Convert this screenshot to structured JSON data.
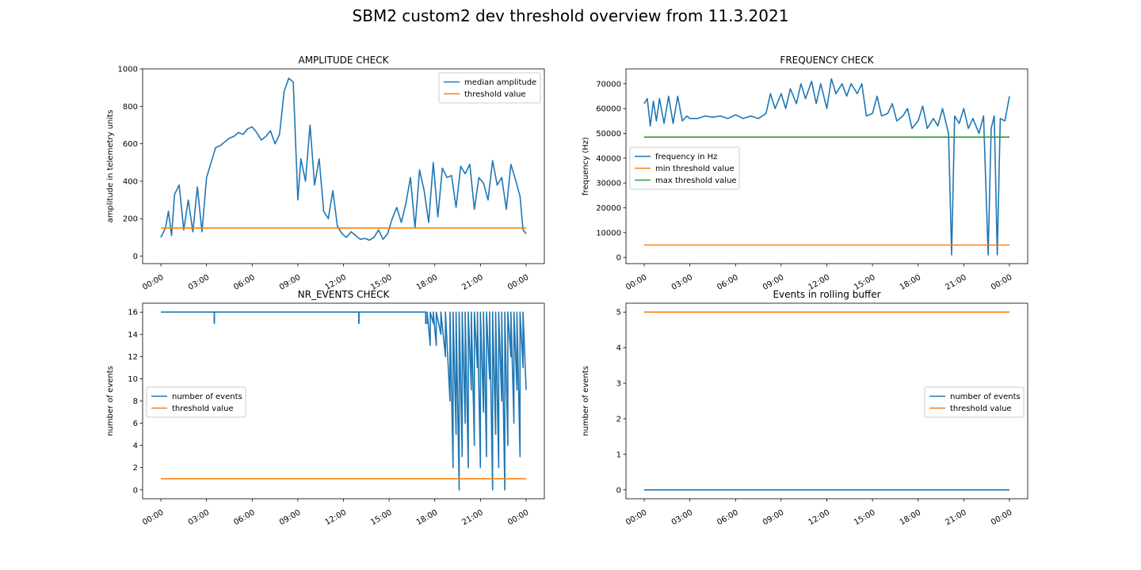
{
  "figure": {
    "title": "SBM2 custom2 dev threshold overview from 11.3.2021"
  },
  "chart_data": [
    {
      "id": "amplitude",
      "type": "line",
      "title": "AMPLITUDE CHECK",
      "xlabel": "",
      "ylabel": "amplitude in telemetry units",
      "xticks": [
        "00:00",
        "03:00",
        "06:00",
        "09:00",
        "12:00",
        "15:00",
        "18:00",
        "21:00",
        "00:00"
      ],
      "xlim_hours": [
        -1.2,
        25.2
      ],
      "ylim": [
        -40,
        1000
      ],
      "yticks": [
        0,
        200,
        400,
        600,
        800,
        1000
      ],
      "legend": "top-right",
      "series": [
        {
          "name": "median amplitude",
          "color": "#1f77b4",
          "x_hours": [
            0,
            0.3,
            0.5,
            0.7,
            0.9,
            1.2,
            1.5,
            1.8,
            2.1,
            2.4,
            2.7,
            3.0,
            3.3,
            3.6,
            3.9,
            4.2,
            4.5,
            4.8,
            5.1,
            5.4,
            5.7,
            6.0,
            6.3,
            6.6,
            6.9,
            7.2,
            7.5,
            7.8,
            8.1,
            8.4,
            8.7,
            9.0,
            9.2,
            9.5,
            9.8,
            10.1,
            10.4,
            10.7,
            11.0,
            11.3,
            11.6,
            11.9,
            12.2,
            12.5,
            12.8,
            13.1,
            13.4,
            13.7,
            14.0,
            14.3,
            14.6,
            14.9,
            15.2,
            15.5,
            15.8,
            16.1,
            16.4,
            16.7,
            17.0,
            17.3,
            17.6,
            17.9,
            18.2,
            18.5,
            18.8,
            19.1,
            19.4,
            19.7,
            20.0,
            20.3,
            20.6,
            20.9,
            21.2,
            21.5,
            21.8,
            22.1,
            22.4,
            22.7,
            23.0,
            23.3,
            23.6,
            23.8,
            24.0
          ],
          "y": [
            100,
            150,
            240,
            110,
            330,
            380,
            140,
            300,
            130,
            370,
            130,
            420,
            500,
            580,
            590,
            610,
            630,
            640,
            660,
            650,
            680,
            690,
            660,
            620,
            640,
            670,
            600,
            650,
            880,
            950,
            930,
            300,
            520,
            400,
            700,
            380,
            520,
            240,
            200,
            350,
            160,
            120,
            100,
            130,
            110,
            90,
            95,
            85,
            100,
            140,
            90,
            120,
            200,
            260,
            180,
            280,
            420,
            150,
            460,
            350,
            180,
            500,
            210,
            470,
            420,
            430,
            260,
            480,
            440,
            490,
            250,
            420,
            390,
            300,
            510,
            380,
            420,
            250,
            490,
            410,
            320,
            140,
            120
          ]
        },
        {
          "name": "threshold value",
          "color": "#ff7f0e",
          "x_hours": [
            0,
            24
          ],
          "y": [
            150,
            150
          ]
        }
      ]
    },
    {
      "id": "frequency",
      "type": "line",
      "title": "FREQUENCY CHECK",
      "xlabel": "",
      "ylabel": "frequency (Hz)",
      "xticks": [
        "00:00",
        "03:00",
        "06:00",
        "09:00",
        "12:00",
        "15:00",
        "18:00",
        "21:00",
        "00:00"
      ],
      "xlim_hours": [
        -1.2,
        25.2
      ],
      "ylim": [
        -2500,
        76000
      ],
      "yticks": [
        0,
        10000,
        20000,
        30000,
        40000,
        50000,
        60000,
        70000
      ],
      "legend": "center-left",
      "series": [
        {
          "name": "frequency in Hz",
          "color": "#1f77b4",
          "x_hours": [
            0,
            0.2,
            0.4,
            0.6,
            0.8,
            1.0,
            1.3,
            1.6,
            1.9,
            2.2,
            2.5,
            2.8,
            3.0,
            3.5,
            4.0,
            4.5,
            5.0,
            5.5,
            6.0,
            6.5,
            7.0,
            7.5,
            8.0,
            8.3,
            8.6,
            9.0,
            9.3,
            9.6,
            10.0,
            10.3,
            10.6,
            11.0,
            11.3,
            11.6,
            12.0,
            12.3,
            12.6,
            13.0,
            13.3,
            13.6,
            14.0,
            14.3,
            14.6,
            15.0,
            15.3,
            15.6,
            16.0,
            16.3,
            16.6,
            17.0,
            17.3,
            17.6,
            18.0,
            18.3,
            18.6,
            19.0,
            19.3,
            19.6,
            20.0,
            20.2,
            20.4,
            20.7,
            21.0,
            21.3,
            21.6,
            22.0,
            22.3,
            22.6,
            22.8,
            23.0,
            23.2,
            23.4,
            23.7,
            24.0
          ],
          "y": [
            62000,
            64000,
            53000,
            63000,
            55000,
            64000,
            54000,
            65000,
            54000,
            65000,
            55000,
            57000,
            56000,
            56000,
            57000,
            56500,
            57000,
            56000,
            57500,
            56000,
            57000,
            56000,
            58000,
            66000,
            60000,
            66000,
            60000,
            68000,
            62000,
            70000,
            64000,
            71000,
            62000,
            70000,
            60000,
            72000,
            66000,
            70000,
            65000,
            70000,
            66000,
            70000,
            57000,
            58000,
            65000,
            57000,
            58000,
            62000,
            55000,
            57000,
            60000,
            52000,
            55000,
            61000,
            52000,
            56000,
            53000,
            60000,
            50000,
            1000,
            57000,
            54000,
            60000,
            52000,
            56000,
            50000,
            57000,
            1000,
            52000,
            57000,
            1000,
            56000,
            55000,
            65000
          ]
        },
        {
          "name": "min threshold value",
          "color": "#ff7f0e",
          "x_hours": [
            0,
            24
          ],
          "y": [
            5000,
            5000
          ]
        },
        {
          "name": "max threshold value",
          "color": "#2ca02c",
          "x_hours": [
            0,
            24
          ],
          "y": [
            48500,
            48500
          ]
        }
      ]
    },
    {
      "id": "nr_events",
      "type": "line",
      "title": "NR_EVENTS CHECK",
      "xlabel": "",
      "ylabel": "number of events",
      "xticks": [
        "00:00",
        "03:00",
        "06:00",
        "09:00",
        "12:00",
        "15:00",
        "18:00",
        "21:00",
        "00:00"
      ],
      "xlim_hours": [
        -1.2,
        25.2
      ],
      "ylim": [
        -0.8,
        16.8
      ],
      "yticks": [
        0,
        2,
        4,
        6,
        8,
        10,
        12,
        14,
        16
      ],
      "legend": "center-left",
      "series": [
        {
          "name": "number of events",
          "color": "#1f77b4",
          "x_hours": [
            0,
            3.5,
            3.5,
            3.52,
            3.52,
            13.0,
            13.0,
            13.02,
            13.02,
            17.4,
            17.4,
            17.5,
            17.5,
            17.7,
            17.7,
            17.9,
            17.9,
            18.1,
            18.1,
            18.4,
            18.4,
            18.7,
            18.7,
            19.0,
            19.0,
            19.2,
            19.2,
            19.4,
            19.4,
            19.6,
            19.6,
            19.8,
            19.8,
            20.0,
            20.0,
            20.2,
            20.2,
            20.4,
            20.4,
            20.6,
            20.6,
            20.8,
            20.8,
            21.0,
            21.0,
            21.2,
            21.2,
            21.4,
            21.4,
            21.6,
            21.6,
            21.8,
            21.8,
            22.0,
            22.0,
            22.2,
            22.2,
            22.4,
            22.4,
            22.6,
            22.6,
            22.8,
            22.8,
            23.0,
            23.0,
            23.2,
            23.2,
            23.4,
            23.4,
            23.6,
            23.6,
            23.8,
            23.8,
            24.0
          ],
          "y": [
            16,
            16,
            15,
            15,
            16,
            16,
            15,
            15,
            16,
            16,
            15,
            15,
            16,
            13,
            16,
            15,
            16,
            13,
            16,
            14,
            16,
            12,
            16,
            8,
            16,
            2,
            16,
            5,
            16,
            0,
            16,
            3,
            16,
            6,
            16,
            2,
            16,
            9,
            16,
            4,
            16,
            11,
            16,
            2,
            16,
            7,
            16,
            3,
            16,
            10,
            16,
            0,
            16,
            5,
            16,
            2,
            16,
            8,
            16,
            0,
            16,
            4,
            16,
            12,
            16,
            6,
            16,
            9,
            16,
            3,
            16,
            11,
            16,
            9
          ]
        },
        {
          "name": "threshold value",
          "color": "#ff7f0e",
          "x_hours": [
            0,
            24
          ],
          "y": [
            1,
            1
          ]
        }
      ]
    },
    {
      "id": "rolling_buffer",
      "type": "line",
      "title": "Events in rolling buffer",
      "xlabel": "",
      "ylabel": "number of events",
      "xticks": [
        "00:00",
        "03:00",
        "06:00",
        "09:00",
        "12:00",
        "15:00",
        "18:00",
        "21:00",
        "00:00"
      ],
      "xlim_hours": [
        -1.2,
        25.2
      ],
      "ylim": [
        -0.25,
        5.25
      ],
      "yticks": [
        0,
        1,
        2,
        3,
        4,
        5
      ],
      "legend": "center-right",
      "series": [
        {
          "name": "number of events",
          "color": "#1f77b4",
          "x_hours": [
            0,
            24
          ],
          "y": [
            0,
            0
          ]
        },
        {
          "name": "threshold value",
          "color": "#ff7f0e",
          "x_hours": [
            0,
            24
          ],
          "y": [
            5,
            5
          ]
        }
      ]
    }
  ]
}
